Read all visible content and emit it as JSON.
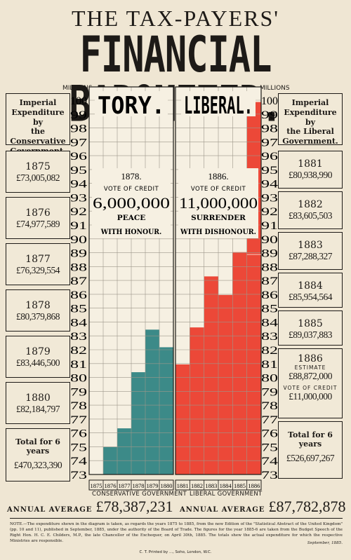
{
  "header": {
    "title_top": "THE TAX-PAYERS'",
    "title_main": "FINANCIAL BAROMETER."
  },
  "axis": {
    "unit_left": "MILLIONS",
    "unit_right": "MILLIONS"
  },
  "left_panel": {
    "heading": [
      "Imperial",
      "Expenditure by",
      "the Conservative",
      "Government."
    ],
    "entries": [
      {
        "year": "1875",
        "amount": "£73,005,082"
      },
      {
        "year": "1876",
        "amount": "£74,977,589"
      },
      {
        "year": "1877",
        "amount": "£76,329,554"
      },
      {
        "year": "1878",
        "amount": "£80,379,868"
      },
      {
        "year": "1879",
        "amount": "£83,446,500"
      },
      {
        "year": "1880",
        "amount": "£82,184,797"
      }
    ],
    "total_label": "Total for 6 years",
    "total_amount": "£470,323,390"
  },
  "right_panel": {
    "heading": [
      "Imperial",
      "Expenditure by",
      "the Liberal",
      "Government."
    ],
    "entries": [
      {
        "year": "1881",
        "amount": "£80,938,990"
      },
      {
        "year": "1882",
        "amount": "£83,605,503"
      },
      {
        "year": "1883",
        "amount": "£87,288,327"
      },
      {
        "year": "1884",
        "amount": "£85,954,564"
      },
      {
        "year": "1885",
        "amount": "£89,037,883"
      },
      {
        "year": "1886",
        "sub_top": "ESTIMATE",
        "amount": "£88,872,000",
        "sub_bottom": "VOTE OF CREDIT",
        "amount2": "£11,000,000"
      }
    ],
    "total_label": "Total for 6 years",
    "total_amount": "£526,697,267"
  },
  "tory": {
    "heading": "TORY.",
    "year": "1878.",
    "vote": "VOTE OF CREDIT",
    "amount": "6,000,000",
    "line1": "PEACE",
    "line2": "WITH HONOUR.",
    "gov_label": "CONSERVATIVE GOVERNMENT",
    "avg_label": "ANNUAL AVERAGE",
    "avg_value": "£78,387,231"
  },
  "liberal": {
    "heading": "LIBERAL.",
    "year": "1886.",
    "vote": "VOTE OF CREDIT",
    "amount": "11,000,000",
    "line1": "SURRENDER",
    "line2": "WITH DISHONOUR.",
    "gov_label": "LIBERAL GOVERNMENT",
    "avg_label": "ANNUAL AVERAGE",
    "avg_value": "£87,782,878"
  },
  "footer": {
    "note": "NOTE.—The expenditure shewn in the diagram is taken, as regards the years 1875 to 1885, from the new Edition of the \"Statistical Abstract of the United Kingdom\" (pp. 10 and 11), published in September, 1885, under the authority of the Board of Trade. The figures for the year 1885-6 are taken from the Budget Speech of the Right Hon. H. C. E. Childers, M.P., the late Chancellor of the Exchequer, on April 30th, 1885. The totals shew the actual expenditure for which the respective Ministries are responsible.",
    "date": "September, 1885.",
    "printer": "C. T. Printed by ..., Soho, London, W.C."
  },
  "colors": {
    "tory": "#3c8a88",
    "liberal": "#ec4838",
    "paper": "#efe6d3",
    "ink": "#1d1a17"
  },
  "chart_data": {
    "type": "bar",
    "ylim": [
      73,
      100
    ],
    "yticks": [
      73,
      74,
      75,
      76,
      77,
      78,
      79,
      80,
      81,
      82,
      83,
      84,
      85,
      86,
      87,
      88,
      89,
      90,
      91,
      92,
      93,
      94,
      95,
      96,
      97,
      98,
      99,
      100
    ],
    "series": [
      {
        "name": "TORY.",
        "categories": [
          "1875",
          "1876",
          "1877",
          "1878",
          "1879",
          "1880"
        ],
        "values": [
          73.0,
          74.98,
          76.33,
          80.38,
          83.45,
          82.18
        ]
      },
      {
        "name": "LIBERAL.",
        "categories": [
          "1881",
          "1882",
          "1883",
          "1884",
          "1885",
          "1886"
        ],
        "values": [
          80.94,
          83.61,
          87.29,
          85.95,
          89.04,
          99.87
        ]
      }
    ],
    "vote_of_credit_1886_top": 88.87
  }
}
